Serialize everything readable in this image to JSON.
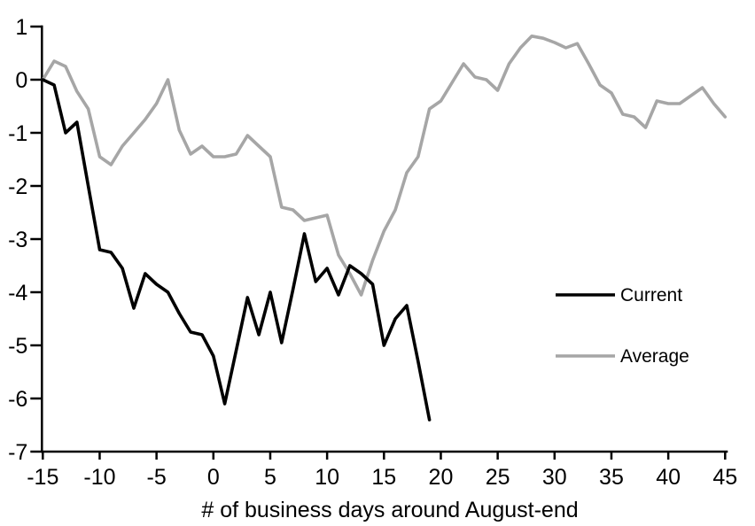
{
  "page": {
    "background": "#ffffff"
  },
  "chart_data": {
    "type": "line",
    "title": "",
    "xlabel": "# of business days around August-end",
    "ylabel": "",
    "xlim": [
      -15,
      45
    ],
    "ylim": [
      -7,
      1
    ],
    "x_ticks": [
      -15,
      -10,
      -5,
      0,
      5,
      10,
      15,
      20,
      25,
      30,
      35,
      40,
      45
    ],
    "y_ticks": [
      1,
      0,
      -1,
      -2,
      -3,
      -4,
      -5,
      -6,
      -7
    ],
    "grid": false,
    "legend_position": "middle-right",
    "axis_color": "#000000",
    "series": [
      {
        "name": "Current",
        "color": "#000000",
        "x": [
          -15,
          -14,
          -13,
          -12,
          -11,
          -10,
          -9,
          -8,
          -7,
          -6,
          -5,
          -4,
          -3,
          -2,
          -1,
          0,
          1,
          2,
          3,
          4,
          5,
          6,
          7,
          8,
          9,
          10,
          11,
          12,
          13,
          14,
          15,
          16,
          17,
          18,
          19
        ],
        "y": [
          0,
          -0.1,
          -1,
          -0.8,
          -2,
          -3.2,
          -3.25,
          -3.55,
          -4.3,
          -3.65,
          -3.85,
          -4,
          -4.4,
          -4.75,
          -4.8,
          -5.2,
          -6.1,
          -5.1,
          -4.1,
          -4.8,
          -4,
          -4.95,
          -3.95,
          -2.9,
          -3.8,
          -3.55,
          -4.05,
          -3.5,
          -3.65,
          -3.85,
          -5,
          -4.5,
          -4.25,
          -5.3,
          -6.4
        ]
      },
      {
        "name": "Average",
        "color": "#a6a6a6",
        "x": [
          -15,
          -14,
          -13,
          -12,
          -11,
          -10,
          -9,
          -8,
          -7,
          -6,
          -5,
          -4,
          -3,
          -2,
          -1,
          0,
          1,
          2,
          3,
          4,
          5,
          6,
          7,
          8,
          9,
          10,
          11,
          12,
          13,
          14,
          15,
          16,
          17,
          18,
          19,
          20,
          21,
          22,
          23,
          24,
          25,
          26,
          27,
          28,
          29,
          30,
          31,
          32,
          33,
          34,
          35,
          36,
          37,
          38,
          39,
          40,
          41,
          42,
          43,
          44,
          45
        ],
        "y": [
          0,
          0.35,
          0.25,
          -0.22,
          -0.55,
          -1.45,
          -1.6,
          -1.25,
          -1,
          -0.75,
          -0.45,
          0,
          -0.95,
          -1.4,
          -1.25,
          -1.45,
          -1.45,
          -1.4,
          -1.05,
          -1.25,
          -1.45,
          -2.4,
          -2.45,
          -2.65,
          -2.6,
          -2.55,
          -3.3,
          -3.65,
          -4.05,
          -3.4,
          -2.85,
          -2.45,
          -1.75,
          -1.45,
          -0.55,
          -0.4,
          -0.05,
          0.3,
          0.05,
          0,
          -0.2,
          0.3,
          0.6,
          0.82,
          0.78,
          0.7,
          0.6,
          0.68,
          0.3,
          -0.1,
          -0.25,
          -0.65,
          -0.7,
          -0.9,
          -0.4,
          -0.45,
          -0.45,
          -0.3,
          -0.15,
          -0.45,
          -0.7
        ]
      }
    ]
  },
  "legend": {
    "current_label": "Current",
    "average_label": "Average"
  }
}
